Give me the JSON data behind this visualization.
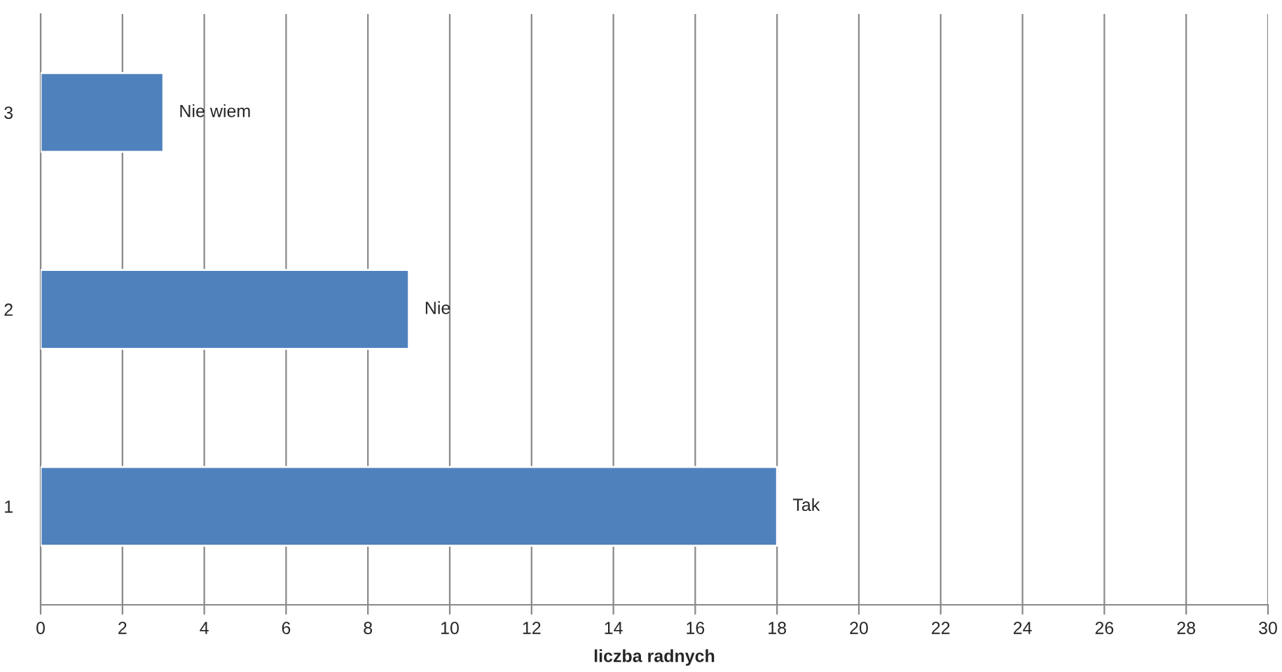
{
  "chart_data": {
    "type": "bar",
    "orientation": "horizontal",
    "xlabel": "liczba radnych",
    "categories": [
      "3",
      "2",
      "1"
    ],
    "values": [
      3,
      9,
      18
    ],
    "color": "#4f81bd",
    "xlim": [
      0,
      30
    ],
    "xticks": [
      0,
      2,
      4,
      6,
      8,
      10,
      12,
      14,
      16,
      18,
      20,
      22,
      24,
      26,
      28,
      30
    ],
    "grid": "x",
    "annotations": [
      {
        "text": "Nie wiem",
        "x": 3,
        "y": "3"
      },
      {
        "text": "Nie",
        "x": 9,
        "y": "2"
      },
      {
        "text": "Tak",
        "x": 18,
        "y": "1"
      }
    ]
  }
}
